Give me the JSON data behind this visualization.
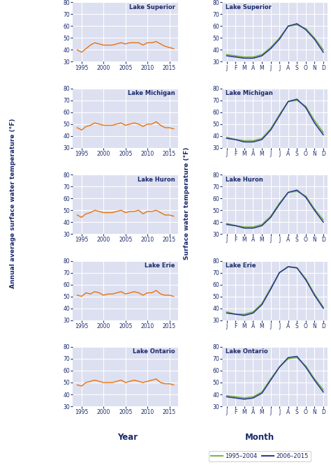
{
  "lakes": [
    "Lake Superior",
    "Lake Michigan",
    "Lake Huron",
    "Lake Erie",
    "Lake Ontario"
  ],
  "left_ylabel": "Annual average surface water temperature (°F)",
  "right_ylabel": "Surface water temperature (°F)",
  "left_xlabel": "Year",
  "right_xlabel": "Month",
  "ylim": [
    30,
    80
  ],
  "yticks": [
    30,
    40,
    50,
    60,
    70,
    80
  ],
  "left_xticks": [
    1995,
    2000,
    2005,
    2010,
    2015
  ],
  "right_xticks": [
    0,
    1,
    2,
    3,
    4,
    5,
    6,
    7,
    8,
    9,
    10,
    11
  ],
  "right_xticklabels": [
    "J",
    "F",
    "M",
    "A",
    "M",
    "J",
    "J",
    "A",
    "S",
    "O",
    "N",
    "D"
  ],
  "color_orange": "#E8720C",
  "color_green": "#7AB648",
  "color_blue": "#2E3D8F",
  "background_color": "#DDE0F0",
  "grid_color": "#FFFFFF",
  "text_color": "#1B2A6B",
  "legend_labels": [
    "1995–2004",
    "2006–2015"
  ],
  "left_data": {
    "Lake Superior": {
      "years": [
        1994,
        1995,
        1996,
        1997,
        1998,
        1999,
        2000,
        2001,
        2002,
        2003,
        2004,
        2005,
        2006,
        2007,
        2008,
        2009,
        2010,
        2011,
        2012,
        2013,
        2014,
        2015,
        2016
      ],
      "values": [
        40,
        38,
        41,
        44,
        46,
        45,
        44,
        44,
        44,
        45,
        46,
        45,
        46,
        46,
        46,
        44,
        46,
        46,
        47,
        45,
        43,
        42,
        41
      ]
    },
    "Lake Michigan": {
      "years": [
        1994,
        1995,
        1996,
        1997,
        1998,
        1999,
        2000,
        2001,
        2002,
        2003,
        2004,
        2005,
        2006,
        2007,
        2008,
        2009,
        2010,
        2011,
        2012,
        2013,
        2014,
        2015,
        2016
      ],
      "values": [
        47,
        45,
        48,
        49,
        51,
        50,
        49,
        49,
        49,
        50,
        51,
        49,
        50,
        51,
        50,
        48,
        50,
        50,
        52,
        49,
        47,
        47,
        46
      ]
    },
    "Lake Huron": {
      "years": [
        1994,
        1995,
        1996,
        1997,
        1998,
        1999,
        2000,
        2001,
        2002,
        2003,
        2004,
        2005,
        2006,
        2007,
        2008,
        2009,
        2010,
        2011,
        2012,
        2013,
        2014,
        2015,
        2016
      ],
      "values": [
        46,
        44,
        47,
        48,
        50,
        49,
        48,
        48,
        48,
        49,
        50,
        48,
        49,
        49,
        50,
        47,
        49,
        49,
        50,
        48,
        46,
        46,
        45
      ]
    },
    "Lake Erie": {
      "years": [
        1994,
        1995,
        1996,
        1997,
        1998,
        1999,
        2000,
        2001,
        2002,
        2003,
        2004,
        2005,
        2006,
        2007,
        2008,
        2009,
        2010,
        2011,
        2012,
        2013,
        2014,
        2015,
        2016
      ],
      "values": [
        51,
        50,
        53,
        52,
        54,
        53,
        51,
        52,
        52,
        53,
        54,
        52,
        53,
        54,
        53,
        51,
        53,
        53,
        55,
        52,
        51,
        51,
        50
      ]
    },
    "Lake Ontario": {
      "years": [
        1994,
        1995,
        1996,
        1997,
        1998,
        1999,
        2000,
        2001,
        2002,
        2003,
        2004,
        2005,
        2006,
        2007,
        2008,
        2009,
        2010,
        2011,
        2012,
        2013,
        2014,
        2015,
        2016
      ],
      "values": [
        48,
        47,
        50,
        51,
        52,
        51,
        50,
        50,
        50,
        51,
        52,
        50,
        51,
        52,
        51,
        50,
        51,
        52,
        53,
        50,
        49,
        49,
        48
      ]
    }
  },
  "right_data": {
    "Lake Superior": {
      "early": [
        36,
        35,
        34,
        34,
        36,
        42,
        50,
        60,
        61,
        58,
        50,
        40
      ],
      "late": [
        35,
        34,
        33,
        33,
        35,
        41,
        49,
        60,
        62,
        57,
        49,
        38
      ]
    },
    "Lake Michigan": {
      "early": [
        39,
        37,
        36,
        36,
        38,
        46,
        58,
        69,
        70,
        65,
        53,
        43
      ],
      "late": [
        38,
        37,
        35,
        35,
        37,
        45,
        57,
        69,
        71,
        64,
        51,
        41
      ]
    },
    "Lake Huron": {
      "early": [
        39,
        37,
        36,
        36,
        38,
        45,
        56,
        65,
        66,
        62,
        51,
        42
      ],
      "late": [
        38,
        37,
        35,
        35,
        37,
        44,
        55,
        65,
        67,
        61,
        50,
        40
      ]
    },
    "Lake Erie": {
      "early": [
        37,
        35,
        35,
        37,
        44,
        57,
        70,
        75,
        74,
        65,
        52,
        41
      ],
      "late": [
        36,
        35,
        34,
        36,
        43,
        56,
        70,
        75,
        74,
        64,
        51,
        40
      ]
    },
    "Lake Ontario": {
      "early": [
        39,
        38,
        37,
        38,
        42,
        53,
        63,
        70,
        71,
        64,
        53,
        44
      ],
      "late": [
        38,
        37,
        36,
        37,
        41,
        52,
        63,
        71,
        72,
        63,
        52,
        42
      ]
    }
  }
}
